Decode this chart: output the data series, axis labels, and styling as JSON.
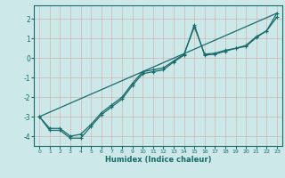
{
  "xlabel": "Humidex (Indice chaleur)",
  "bg_color": "#cce8e8",
  "grid_color": "#b0d4d4",
  "line_color": "#1a6b6b",
  "xlim": [
    -0.5,
    23.5
  ],
  "ylim": [
    -4.5,
    2.7
  ],
  "yticks": [
    -4,
    -3,
    -2,
    -1,
    0,
    1,
    2
  ],
  "xticks": [
    0,
    1,
    2,
    3,
    4,
    5,
    6,
    7,
    8,
    9,
    10,
    11,
    12,
    13,
    14,
    15,
    16,
    17,
    18,
    19,
    20,
    21,
    22,
    23
  ],
  "line1_x": [
    0,
    1,
    2,
    3,
    4,
    5,
    6,
    7,
    8,
    9,
    10,
    11,
    12,
    13,
    14,
    15,
    16,
    17,
    18,
    19,
    20,
    21,
    22,
    23
  ],
  "line1_y": [
    -3.0,
    -3.7,
    -3.7,
    -4.1,
    -4.1,
    -3.5,
    -2.9,
    -2.5,
    -2.1,
    -1.4,
    -0.8,
    -0.7,
    -0.6,
    -0.2,
    0.15,
    1.7,
    0.15,
    0.2,
    0.35,
    0.5,
    0.6,
    1.05,
    1.4,
    2.3
  ],
  "line2_x": [
    0,
    1,
    2,
    3,
    4,
    5,
    6,
    7,
    8,
    9,
    10,
    11,
    12,
    13,
    14,
    15,
    16,
    17,
    18,
    19,
    20,
    21,
    22,
    23
  ],
  "line2_y": [
    -3.0,
    -3.6,
    -3.6,
    -4.0,
    -3.9,
    -3.4,
    -2.8,
    -2.4,
    -2.0,
    -1.3,
    -0.7,
    -0.6,
    -0.5,
    -0.15,
    0.2,
    1.6,
    0.2,
    0.25,
    0.4,
    0.5,
    0.65,
    1.1,
    1.4,
    2.1
  ],
  "line3_x": [
    0,
    23
  ],
  "line3_y": [
    -3.0,
    2.3
  ]
}
